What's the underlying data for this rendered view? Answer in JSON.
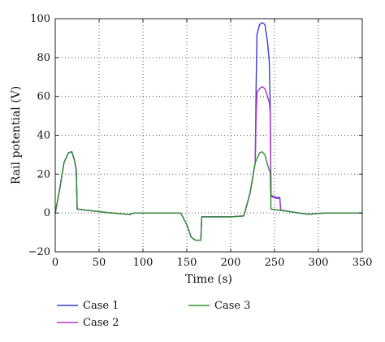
{
  "chart_data": {
    "type": "line",
    "xlabel": "Time (s)",
    "ylabel": "Rail potential (V)",
    "xlim": [
      0,
      350
    ],
    "ylim": [
      -20,
      100
    ],
    "xticks": [
      0,
      50,
      100,
      150,
      200,
      250,
      300,
      350
    ],
    "yticks": [
      -20,
      0,
      20,
      40,
      60,
      80,
      100
    ],
    "grid": true,
    "grid_style": "dotted",
    "legend_position": "bottom",
    "series": [
      {
        "name": "Case 1",
        "color": "#3b3bd0",
        "points": [
          [
            0,
            0
          ],
          [
            5,
            12
          ],
          [
            10,
            26
          ],
          [
            15,
            31
          ],
          [
            19,
            31.5
          ],
          [
            22,
            27
          ],
          [
            24,
            22
          ],
          [
            25,
            2
          ],
          [
            40,
            1.2
          ],
          [
            60,
            0.2
          ],
          [
            80,
            -0.6
          ],
          [
            85,
            -0.8
          ],
          [
            88,
            -0.3
          ],
          [
            90,
            0
          ],
          [
            143,
            0
          ],
          [
            150,
            -6
          ],
          [
            155,
            -12.5
          ],
          [
            160,
            -14
          ],
          [
            166,
            -14
          ],
          [
            167,
            -2
          ],
          [
            190,
            -2
          ],
          [
            200,
            -2
          ],
          [
            215,
            -1.5
          ],
          [
            222,
            10
          ],
          [
            228,
            26
          ],
          [
            229,
            65
          ],
          [
            230,
            92
          ],
          [
            233,
            97
          ],
          [
            236,
            98
          ],
          [
            239,
            97
          ],
          [
            242,
            88
          ],
          [
            244,
            78
          ],
          [
            245,
            57
          ],
          [
            246,
            9
          ],
          [
            252,
            8
          ],
          [
            256,
            8
          ],
          [
            257,
            1.5
          ],
          [
            270,
            0.5
          ],
          [
            285,
            -0.5
          ],
          [
            292,
            -0.6
          ],
          [
            297,
            -0.3
          ],
          [
            310,
            0
          ],
          [
            350,
            0
          ]
        ]
      },
      {
        "name": "Case 2",
        "color": "#b030c8",
        "points": [
          [
            0,
            0
          ],
          [
            5,
            12
          ],
          [
            10,
            26
          ],
          [
            15,
            31
          ],
          [
            19,
            31.5
          ],
          [
            22,
            27
          ],
          [
            24,
            22
          ],
          [
            25,
            2
          ],
          [
            40,
            1.2
          ],
          [
            60,
            0.2
          ],
          [
            80,
            -0.6
          ],
          [
            85,
            -0.8
          ],
          [
            88,
            -0.3
          ],
          [
            90,
            0
          ],
          [
            143,
            0
          ],
          [
            150,
            -6
          ],
          [
            155,
            -12.5
          ],
          [
            160,
            -14
          ],
          [
            166,
            -14
          ],
          [
            167,
            -2
          ],
          [
            190,
            -2
          ],
          [
            200,
            -2
          ],
          [
            215,
            -1.5
          ],
          [
            222,
            10
          ],
          [
            228,
            26
          ],
          [
            229,
            50
          ],
          [
            230,
            62
          ],
          [
            233,
            64
          ],
          [
            236,
            65
          ],
          [
            239,
            64
          ],
          [
            242,
            60
          ],
          [
            244,
            57
          ],
          [
            245,
            52
          ],
          [
            246,
            8.5
          ],
          [
            252,
            7.5
          ],
          [
            256,
            7.5
          ],
          [
            257,
            1.5
          ],
          [
            270,
            0.5
          ],
          [
            285,
            -0.5
          ],
          [
            292,
            -0.6
          ],
          [
            297,
            -0.3
          ],
          [
            310,
            0
          ],
          [
            350,
            0
          ]
        ]
      },
      {
        "name": "Case 3",
        "color": "#2f8f2f",
        "points": [
          [
            0,
            0
          ],
          [
            5,
            12
          ],
          [
            10,
            26
          ],
          [
            15,
            31
          ],
          [
            19,
            31.5
          ],
          [
            22,
            27
          ],
          [
            24,
            22
          ],
          [
            25,
            2
          ],
          [
            40,
            1.2
          ],
          [
            60,
            0.2
          ],
          [
            80,
            -0.6
          ],
          [
            85,
            -0.8
          ],
          [
            88,
            -0.3
          ],
          [
            90,
            0
          ],
          [
            143,
            0
          ],
          [
            150,
            -6
          ],
          [
            155,
            -12.5
          ],
          [
            160,
            -14
          ],
          [
            166,
            -14
          ],
          [
            167,
            -2
          ],
          [
            190,
            -2
          ],
          [
            200,
            -2
          ],
          [
            215,
            -1.5
          ],
          [
            222,
            10
          ],
          [
            228,
            26
          ],
          [
            233,
            31
          ],
          [
            236,
            31.5
          ],
          [
            239,
            30
          ],
          [
            242,
            25
          ],
          [
            244,
            22
          ],
          [
            245,
            21
          ],
          [
            246,
            2
          ],
          [
            270,
            0.5
          ],
          [
            285,
            -0.5
          ],
          [
            292,
            -0.6
          ],
          [
            297,
            -0.3
          ],
          [
            310,
            0
          ],
          [
            350,
            0
          ]
        ]
      }
    ]
  }
}
